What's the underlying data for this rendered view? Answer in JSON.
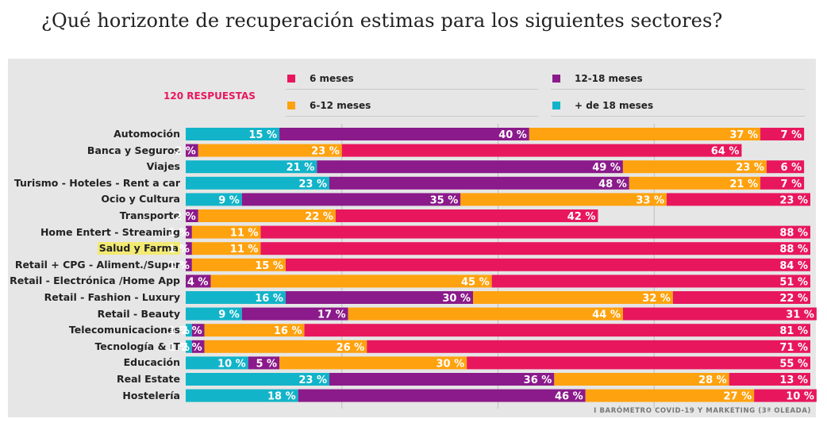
{
  "title": "¿Qué horizonte de recuperación estimas para los siguientes sectores?",
  "responses_label": "120 RESPUESTAS",
  "source": "I BARÓMETRO COVID-19 Y MARKETING (3ª OLEADA)",
  "colors": {
    "panel": "#e6e6e6",
    "6_meses": "#e8175d",
    "12_18_meses": "#8b1a8b",
    "6_12_meses": "#ffa20f",
    "mas_18_meses": "#12b4c9"
  },
  "legend": [
    {
      "label": "6 meses",
      "color": "#e8175d"
    },
    {
      "label": "12-18 meses",
      "color": "#8b1a8b"
    },
    {
      "label": "6-12 meses",
      "color": "#ffa20f"
    },
    {
      "label": "+ de 18 meses",
      "color": "#12b4c9"
    }
  ],
  "chart_data": {
    "type": "bar",
    "orientation": "horizontal",
    "stacked": true,
    "title": "¿Qué horizonte de recuperación estimas para los siguientes sectores?",
    "unit": "%",
    "xlim": [
      0,
      100
    ],
    "grid": true,
    "legend_position": "top",
    "categories": [
      "Automoción",
      "Banca y Seguros",
      "Viajes",
      "Turismo - Hoteles - Rent a car",
      "Ocio y Cultura",
      "Transporte",
      "Home Entert - Streaming",
      "Salud y Farma",
      "Retail + CPG - Aliment./Super",
      "Retail - Electrónica /Home App",
      "Retail - Fashion - Luxury",
      "Retail - Beauty",
      "Telecomunicaciones",
      "Tecnología & IT",
      "Educación",
      "Real Estate",
      "Hostelería"
    ],
    "highlighted_category": "Salud y Farma",
    "series": [
      {
        "name": "+ de 18 meses",
        "color": "#12b4c9",
        "values": [
          15,
          0,
          21,
          23,
          9,
          0,
          0,
          0,
          0,
          0,
          16,
          9,
          1,
          1,
          10,
          23,
          18
        ]
      },
      {
        "name": "12-18 meses",
        "color": "#8b1a8b",
        "values": [
          40,
          2,
          49,
          48,
          35,
          2,
          1,
          1,
          1,
          4,
          30,
          17,
          2,
          2,
          5,
          36,
          46
        ]
      },
      {
        "name": "6-12 meses",
        "color": "#ffa20f",
        "values": [
          37,
          23,
          23,
          21,
          33,
          22,
          11,
          11,
          15,
          45,
          32,
          44,
          16,
          26,
          30,
          28,
          27
        ]
      },
      {
        "name": "6 meses",
        "color": "#e8175d",
        "values": [
          7,
          64,
          6,
          7,
          23,
          42,
          88,
          88,
          84,
          51,
          22,
          31,
          81,
          71,
          55,
          13,
          10
        ]
      }
    ],
    "display_order_note": "segments drawn left to right: + de 18 meses, 12-18 meses, 6-12 meses, 6 meses"
  }
}
